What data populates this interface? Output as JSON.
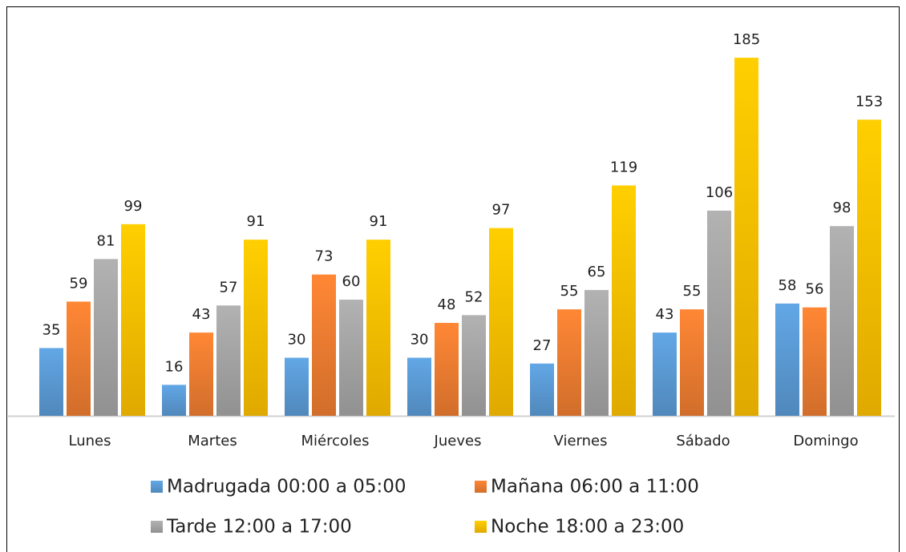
{
  "chart_data": {
    "type": "bar",
    "categories": [
      "Lunes",
      "Martes",
      "Miércoles",
      "Jueves",
      "Viernes",
      "Sábado",
      "Domingo"
    ],
    "series": [
      {
        "name": "Madrugada 00:00 a 05:00",
        "color": "#5b9bd5",
        "values": [
          35,
          16,
          30,
          30,
          27,
          43,
          58
        ]
      },
      {
        "name": "Mañana 06:00 a 11:00",
        "color": "#ed7d31",
        "values": [
          59,
          43,
          73,
          48,
          55,
          55,
          56
        ]
      },
      {
        "name": "Tarde 12:00 a 17:00",
        "color": "#a5a5a5",
        "values": [
          81,
          57,
          60,
          52,
          65,
          106,
          98
        ]
      },
      {
        "name": "Noche 18:00 a 23:00",
        "color": "#ffc000",
        "values": [
          99,
          91,
          91,
          97,
          119,
          185,
          153
        ]
      }
    ],
    "legend": "bottom"
  }
}
